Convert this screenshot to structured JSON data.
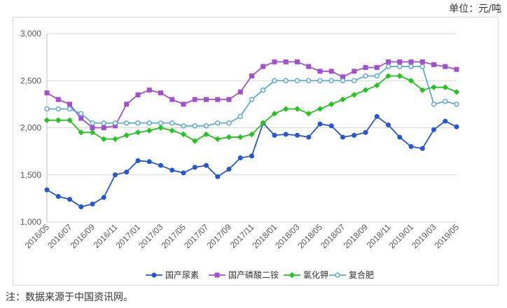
{
  "unit_label": "单位：元/吨",
  "note": "注：数据来源于中国资讯网。",
  "chart_data": {
    "type": "line",
    "ylim": [
      1000,
      3000
    ],
    "yticks": [
      "1,000",
      "1,500",
      "2,000",
      "2,500",
      "3,000"
    ],
    "grid": "horizontal",
    "legend_position": "bottom",
    "x": [
      "2016/05",
      "2016/06",
      "2016/07",
      "2016/08",
      "2016/09",
      "2016/10",
      "2016/11",
      "2016/12",
      "2017/01",
      "2017/02",
      "2017/03",
      "2017/04",
      "2017/05",
      "2017/06",
      "2017/07",
      "2017/08",
      "2017/09",
      "2017/10",
      "2017/11",
      "2017/12",
      "2018/01",
      "2018/02",
      "2018/03",
      "2018/04",
      "2018/05",
      "2018/06",
      "2018/07",
      "2018/08",
      "2018/09",
      "2018/10",
      "2018/11",
      "2018/12",
      "2019/01",
      "2019/02",
      "2019/03",
      "2019/04",
      "2019/05"
    ],
    "xtick_labels": [
      "2016/05",
      "2016/07",
      "2016/09",
      "2016/11",
      "2017/01",
      "2017/03",
      "2017/05",
      "2017/07",
      "2017/09",
      "2017/11",
      "2018/01",
      "2018/03",
      "2018/05",
      "2018/07",
      "2018/09",
      "2018/11",
      "2019/01",
      "2019/03",
      "2019/05"
    ],
    "series": [
      {
        "name": "国产尿素",
        "color": "#2456d6",
        "marker": "circle",
        "values": [
          1340,
          1270,
          1240,
          1160,
          1190,
          1260,
          1500,
          1530,
          1650,
          1640,
          1600,
          1550,
          1520,
          1580,
          1600,
          1480,
          1560,
          1680,
          1700,
          2050,
          1920,
          1930,
          1920,
          1900,
          2040,
          2020,
          1900,
          1920,
          1950,
          2120,
          2030,
          1900,
          1800,
          1780,
          1980,
          2070,
          2010
        ]
      },
      {
        "name": "国产磷酸二铵",
        "color": "#a44fd1",
        "marker": "square",
        "values": [
          2370,
          2300,
          2250,
          2100,
          2000,
          2000,
          2020,
          2250,
          2350,
          2400,
          2370,
          2300,
          2250,
          2300,
          2300,
          2300,
          2300,
          2380,
          2550,
          2650,
          2700,
          2700,
          2700,
          2650,
          2600,
          2600,
          2540,
          2600,
          2640,
          2640,
          2700,
          2700,
          2700,
          2700,
          2670,
          2650,
          2620
        ]
      },
      {
        "name": "氯化钾",
        "color": "#22c51e",
        "marker": "diamond",
        "values": [
          2080,
          2080,
          2080,
          1950,
          1950,
          1880,
          1880,
          1920,
          1950,
          1970,
          2000,
          1970,
          1930,
          1860,
          1930,
          1880,
          1900,
          1900,
          1930,
          2050,
          2150,
          2200,
          2200,
          2150,
          2200,
          2250,
          2300,
          2350,
          2400,
          2450,
          2550,
          2550,
          2500,
          2400,
          2430,
          2430,
          2380
        ]
      },
      {
        "name": "复合肥",
        "color": "#5ea9dd",
        "marker": "open-circle",
        "values": [
          2200,
          2200,
          2200,
          2150,
          2050,
          2050,
          2050,
          2050,
          2050,
          2050,
          2050,
          2050,
          2020,
          2020,
          2020,
          2050,
          2050,
          2120,
          2300,
          2400,
          2500,
          2500,
          2500,
          2500,
          2500,
          2500,
          2500,
          2500,
          2550,
          2550,
          2650,
          2650,
          2650,
          2650,
          2250,
          2280,
          2250
        ]
      }
    ]
  }
}
